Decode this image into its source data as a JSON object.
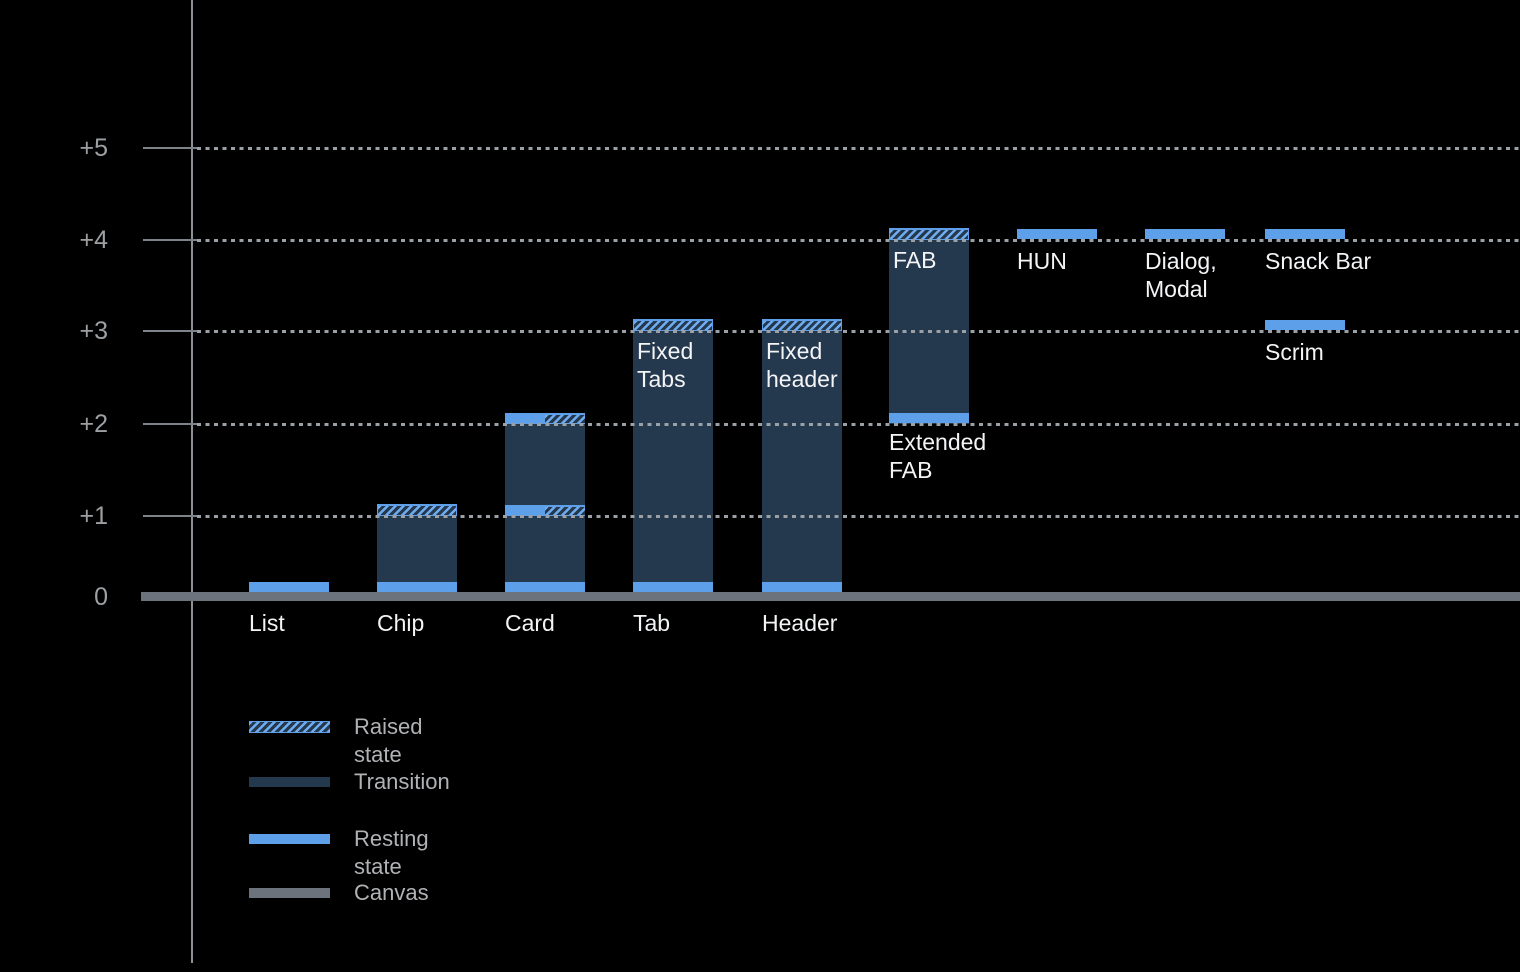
{
  "chart_data": {
    "type": "bar",
    "title": "",
    "xlabel": "",
    "ylabel": "",
    "y_ticks": [
      "+5",
      "+4",
      "+3",
      "+2",
      "+1",
      "0"
    ],
    "y_range": [
      0,
      5
    ],
    "grid": "dotted horizontal gridlines at +1 through +5",
    "legend_position": "bottom-left",
    "legend": [
      {
        "label": "Raised state",
        "swatch": "raised"
      },
      {
        "label": "Transition",
        "swatch": "transition"
      },
      {
        "label": "Resting state",
        "swatch": "resting"
      },
      {
        "label": "Canvas",
        "swatch": "canvas"
      }
    ],
    "bars": [
      {
        "label": "List",
        "label_lines": [
          "List"
        ],
        "label_placement": "axis",
        "segments": [
          {
            "kind": "resting",
            "at": 0
          }
        ]
      },
      {
        "label": "Chip",
        "label_lines": [
          "Chip"
        ],
        "label_placement": "axis",
        "segments": [
          {
            "kind": "transition",
            "from": 0,
            "to": 1
          },
          {
            "kind": "resting",
            "at": 0
          },
          {
            "kind": "raised",
            "at": 1
          }
        ]
      },
      {
        "label": "Card",
        "label_lines": [
          "Card"
        ],
        "label_placement": "axis",
        "segments": [
          {
            "kind": "transition",
            "from": 0,
            "to": 2
          },
          {
            "kind": "resting",
            "at": 0
          },
          {
            "kind": "resting-raised",
            "at": 1
          },
          {
            "kind": "resting-raised",
            "at": 2
          }
        ]
      },
      {
        "label": "Tab",
        "label_lines": [
          "Tab"
        ],
        "label_placement": "axis",
        "annotation_lines": [
          "Fixed",
          "Tabs"
        ],
        "segments": [
          {
            "kind": "transition",
            "from": 0,
            "to": 3
          },
          {
            "kind": "resting",
            "at": 0
          },
          {
            "kind": "raised",
            "at": 3
          }
        ]
      },
      {
        "label": "Header",
        "label_lines": [
          "Header"
        ],
        "label_placement": "axis",
        "annotation_lines": [
          "Fixed",
          "header"
        ],
        "segments": [
          {
            "kind": "transition",
            "from": 0,
            "to": 3
          },
          {
            "kind": "resting",
            "at": 0
          },
          {
            "kind": "raised",
            "at": 3
          }
        ]
      },
      {
        "label": "Extended FAB",
        "label_lines": [
          "Extended",
          "FAB"
        ],
        "label_placement": "below",
        "annotation_lines": [
          "FAB"
        ],
        "segments": [
          {
            "kind": "transition",
            "from": 2,
            "to": 4
          },
          {
            "kind": "resting",
            "at": 2
          },
          {
            "kind": "raised",
            "at": 4
          }
        ]
      },
      {
        "label": "HUN",
        "label_lines": [
          "HUN"
        ],
        "label_placement": "below",
        "segments": [
          {
            "kind": "resting",
            "at": 4
          }
        ]
      },
      {
        "label": "Dialog, Modal",
        "label_lines": [
          "Dialog,",
          "Modal"
        ],
        "label_placement": "below",
        "segments": [
          {
            "kind": "resting",
            "at": 4
          }
        ]
      },
      {
        "label": "Snack Bar",
        "label_lines": [
          "Snack Bar"
        ],
        "label_placement": "below",
        "segments": [
          {
            "kind": "resting",
            "at": 4
          }
        ]
      },
      {
        "label": "Scrim",
        "label_lines": [
          "Scrim"
        ],
        "label_placement": "below",
        "segments": [
          {
            "kind": "resting",
            "at": 3
          }
        ]
      }
    ],
    "colors": {
      "background": "#000000",
      "resting_state": "#5d9fe8",
      "transition": "#24384e",
      "raised_stripe": "#6fabee",
      "canvas": "#6d737c",
      "gridline": "#9aa0a5",
      "axis": "#8d9196",
      "axis_label": "#9da0a3",
      "bar_label": "#f3f4f6",
      "legend_label": "#b0b2b5"
    }
  }
}
